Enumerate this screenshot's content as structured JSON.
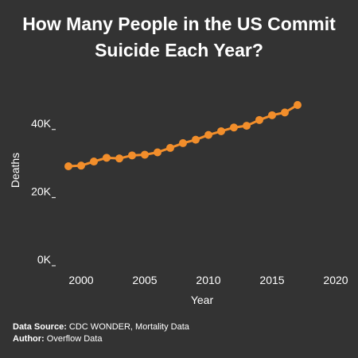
{
  "title_line1": "How Many People in the US Commit",
  "title_line2": "Suicide Each Year?",
  "footer": {
    "source_label": "Data Source:",
    "source_value": "CDC WONDER, Mortality Data",
    "author_label": "Author:",
    "author_value": "Overflow Data"
  },
  "colors": {
    "background": "#333333",
    "series": "#F28E2B",
    "text": "#FFFFFF"
  },
  "chart_data": {
    "type": "line",
    "title": "How Many People in the US Commit Suicide Each Year?",
    "xlabel": "Year",
    "ylabel": "Deaths",
    "xlim": [
      1998,
      2021
    ],
    "ylim": [
      0,
      50000
    ],
    "x_ticks": [
      2000,
      2005,
      2010,
      2015,
      2020
    ],
    "y_ticks": [
      {
        "value": 0,
        "label": "0K"
      },
      {
        "value": 20000,
        "label": "20K"
      },
      {
        "value": 40000,
        "label": "40K"
      }
    ],
    "grid": false,
    "x": [
      1999,
      2000,
      2001,
      2002,
      2003,
      2004,
      2005,
      2006,
      2007,
      2008,
      2009,
      2010,
      2011,
      2012,
      2013,
      2014,
      2015,
      2016,
      2017
    ],
    "values": [
      29200,
      29400,
      30600,
      31700,
      31500,
      32400,
      32600,
      33300,
      34600,
      36000,
      37000,
      38400,
      39500,
      40600,
      41100,
      42800,
      44200,
      45000,
      47200
    ]
  }
}
